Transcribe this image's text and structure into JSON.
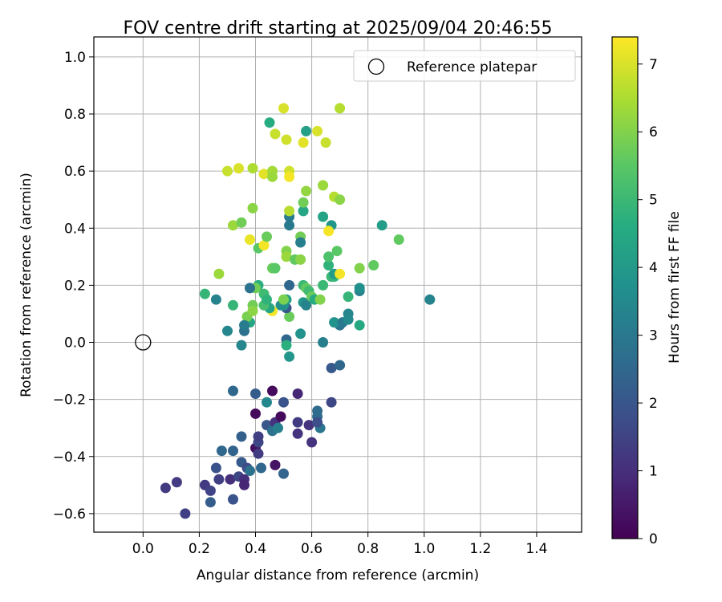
{
  "chart_data": {
    "type": "scatter",
    "title": "FOV centre drift starting at 2025/09/04 20:46:55",
    "xlabel": "Angular distance from reference (arcmin)",
    "ylabel": "Rotation from reference (arcmin)",
    "xlim": [
      -0.175,
      1.56
    ],
    "ylim": [
      -0.665,
      1.07
    ],
    "x_ticks": [
      0.0,
      0.2,
      0.4,
      0.6,
      0.8,
      1.0,
      1.2,
      1.4
    ],
    "y_ticks": [
      -0.6,
      -0.4,
      -0.2,
      0.0,
      0.2,
      0.4,
      0.6,
      0.8,
      1.0
    ],
    "x_tick_labels": [
      "0.0",
      "0.2",
      "0.4",
      "0.6",
      "0.8",
      "1.0",
      "1.2",
      "1.4"
    ],
    "y_tick_labels": [
      "−0.6",
      "−0.4",
      "−0.2",
      "0.0",
      "0.2",
      "0.4",
      "0.6",
      "0.8",
      "1.0"
    ],
    "grid": true,
    "legend": {
      "placement": "top-right",
      "entries": [
        "Reference platepar"
      ]
    },
    "reference_point": {
      "name": "Reference platepar",
      "x": 0.0,
      "y": 0.0
    },
    "colorbar": {
      "label": "Hours from first FF file",
      "colormap": "viridis",
      "range": [
        0,
        7.4
      ],
      "ticks": [
        0,
        1,
        2,
        3,
        4,
        5,
        6,
        7
      ],
      "tick_labels": [
        "0",
        "1",
        "2",
        "3",
        "4",
        "5",
        "6",
        "7"
      ]
    },
    "points": [
      [
        0.08,
        -0.51,
        1.3
      ],
      [
        0.12,
        -0.49,
        1.3
      ],
      [
        0.15,
        -0.6,
        1.4
      ],
      [
        0.22,
        -0.5,
        1.3
      ],
      [
        0.24,
        -0.52,
        1.5
      ],
      [
        0.24,
        -0.56,
        2.2
      ],
      [
        0.26,
        -0.44,
        1.9
      ],
      [
        0.27,
        -0.48,
        1.4
      ],
      [
        0.28,
        -0.38,
        2.5
      ],
      [
        0.31,
        -0.48,
        1.0
      ],
      [
        0.32,
        -0.55,
        1.9
      ],
      [
        0.32,
        -0.38,
        2.4
      ],
      [
        0.34,
        -0.47,
        1.6
      ],
      [
        0.35,
        -0.42,
        2.1
      ],
      [
        0.36,
        -0.48,
        1.0
      ],
      [
        0.36,
        -0.5,
        0.8
      ],
      [
        0.37,
        -0.44,
        1.7
      ],
      [
        0.38,
        -0.45,
        2.8
      ],
      [
        0.4,
        -0.37,
        0.3
      ],
      [
        0.41,
        -0.39,
        1.3
      ],
      [
        0.41,
        -0.35,
        1.6
      ],
      [
        0.41,
        -0.33,
        1.4
      ],
      [
        0.42,
        -0.44,
        2.5
      ],
      [
        0.44,
        -0.29,
        2.0
      ],
      [
        0.46,
        -0.31,
        2.8
      ],
      [
        0.47,
        -0.28,
        1.1
      ],
      [
        0.47,
        -0.43,
        0.4
      ],
      [
        0.48,
        -0.3,
        3.2
      ],
      [
        0.49,
        -0.26,
        0.2
      ],
      [
        0.5,
        -0.21,
        1.9
      ],
      [
        0.5,
        -0.46,
        2.4
      ],
      [
        0.4,
        -0.18,
        2.2
      ],
      [
        0.4,
        -0.25,
        0.2
      ],
      [
        0.46,
        -0.17,
        0.2
      ],
      [
        0.44,
        -0.21,
        3.5
      ],
      [
        0.32,
        -0.17,
        2.5
      ],
      [
        0.35,
        -0.33,
        2.3
      ],
      [
        0.55,
        -0.18,
        0.8
      ],
      [
        0.55,
        -0.28,
        1.3
      ],
      [
        0.55,
        -0.32,
        1.1
      ],
      [
        0.59,
        -0.29,
        1.1
      ],
      [
        0.6,
        -0.35,
        1.1
      ],
      [
        0.62,
        -0.24,
        2.6
      ],
      [
        0.62,
        -0.26,
        2.6
      ],
      [
        0.63,
        -0.3,
        2.9
      ],
      [
        0.67,
        -0.21,
        1.6
      ],
      [
        0.62,
        -0.28,
        1.8
      ],
      [
        0.67,
        -0.09,
        2.1
      ],
      [
        0.7,
        -0.08,
        2.5
      ],
      [
        0.64,
        0.0,
        3.2
      ],
      [
        0.7,
        0.06,
        2.9
      ],
      [
        0.68,
        0.07,
        3.8
      ],
      [
        0.56,
        0.03,
        3.8
      ],
      [
        0.51,
        0.01,
        2.5
      ],
      [
        0.51,
        -0.01,
        4.7
      ],
      [
        0.52,
        -0.05,
        3.9
      ],
      [
        0.52,
        0.09,
        5.7
      ],
      [
        0.51,
        0.12,
        2.0
      ],
      [
        0.51,
        0.15,
        4.2
      ],
      [
        0.52,
        0.2,
        2.5
      ],
      [
        0.5,
        0.13,
        3.9
      ],
      [
        0.49,
        0.13,
        3.7
      ],
      [
        0.46,
        0.11,
        7.3
      ],
      [
        0.45,
        0.12,
        4.4
      ],
      [
        0.43,
        0.13,
        5.2
      ],
      [
        0.43,
        0.17,
        5.1
      ],
      [
        0.41,
        0.2,
        4.7
      ],
      [
        0.4,
        0.19,
        5.8
      ],
      [
        0.39,
        0.13,
        5.8
      ],
      [
        0.38,
        0.07,
        4.4
      ],
      [
        0.37,
        0.09,
        5.9
      ],
      [
        0.36,
        0.04,
        2.8
      ],
      [
        0.36,
        0.06,
        3.1
      ],
      [
        0.35,
        -0.01,
        3.4
      ],
      [
        0.3,
        0.04,
        3.4
      ],
      [
        0.32,
        0.13,
        4.9
      ],
      [
        0.26,
        0.15,
        3.3
      ],
      [
        0.22,
        0.17,
        4.9
      ],
      [
        0.27,
        0.24,
        6.3
      ],
      [
        0.38,
        0.19,
        2.8
      ],
      [
        0.39,
        0.11,
        6.1
      ],
      [
        0.44,
        0.15,
        4.8
      ],
      [
        0.46,
        0.26,
        5.7
      ],
      [
        0.47,
        0.26,
        5.5
      ],
      [
        0.5,
        0.15,
        5.9
      ],
      [
        0.51,
        0.32,
        6.0
      ],
      [
        0.51,
        0.3,
        6.3
      ],
      [
        0.52,
        0.44,
        3.1
      ],
      [
        0.52,
        0.41,
        3.0
      ],
      [
        0.54,
        0.29,
        5.6
      ],
      [
        0.56,
        0.37,
        5.8
      ],
      [
        0.56,
        0.35,
        3.2
      ],
      [
        0.56,
        0.29,
        6.1
      ],
      [
        0.57,
        0.2,
        5.0
      ],
      [
        0.57,
        0.14,
        3.9
      ],
      [
        0.58,
        0.13,
        3.3
      ],
      [
        0.58,
        0.19,
        5.6
      ],
      [
        0.59,
        0.18,
        5.1
      ],
      [
        0.6,
        0.16,
        5.7
      ],
      [
        0.61,
        0.15,
        4.6
      ],
      [
        0.63,
        0.15,
        6.0
      ],
      [
        0.64,
        0.2,
        5.0
      ],
      [
        0.66,
        0.27,
        4.8
      ],
      [
        0.66,
        0.3,
        5.3
      ],
      [
        0.67,
        0.23,
        5.0
      ],
      [
        0.68,
        0.23,
        4.9
      ],
      [
        0.68,
        0.24,
        4.1
      ],
      [
        0.69,
        0.32,
        5.5
      ],
      [
        0.7,
        0.24,
        7.3
      ],
      [
        0.71,
        0.07,
        3.0
      ],
      [
        0.73,
        0.1,
        3.4
      ],
      [
        0.73,
        0.08,
        3.5
      ],
      [
        0.73,
        0.16,
        4.9
      ],
      [
        0.77,
        0.06,
        4.5
      ],
      [
        0.77,
        0.18,
        3.2
      ],
      [
        0.77,
        0.19,
        3.7
      ],
      [
        0.77,
        0.26,
        6.0
      ],
      [
        0.82,
        0.27,
        5.6
      ],
      [
        0.85,
        0.41,
        4.1
      ],
      [
        0.91,
        0.36,
        5.6
      ],
      [
        1.02,
        0.15,
        3.3
      ],
      [
        0.64,
        0.44,
        4.3
      ],
      [
        0.67,
        0.41,
        3.9
      ],
      [
        0.66,
        0.39,
        7.3
      ],
      [
        0.57,
        0.46,
        4.4
      ],
      [
        0.57,
        0.49,
        5.8
      ],
      [
        0.52,
        0.46,
        6.6
      ],
      [
        0.58,
        0.53,
        6.2
      ],
      [
        0.64,
        0.55,
        6.3
      ],
      [
        0.68,
        0.51,
        6.6
      ],
      [
        0.7,
        0.5,
        6.1
      ],
      [
        0.39,
        0.47,
        6.1
      ],
      [
        0.38,
        0.36,
        7.2
      ],
      [
        0.41,
        0.33,
        5.5
      ],
      [
        0.43,
        0.34,
        7.3
      ],
      [
        0.44,
        0.37,
        5.7
      ],
      [
        0.32,
        0.41,
        6.3
      ],
      [
        0.35,
        0.42,
        5.8
      ],
      [
        0.3,
        0.6,
        6.8
      ],
      [
        0.34,
        0.61,
        7.0
      ],
      [
        0.39,
        0.61,
        6.5
      ],
      [
        0.43,
        0.59,
        7.1
      ],
      [
        0.46,
        0.6,
        6.4
      ],
      [
        0.46,
        0.58,
        6.3
      ],
      [
        0.52,
        0.6,
        6.9
      ],
      [
        0.52,
        0.58,
        7.3
      ],
      [
        0.45,
        0.77,
        4.6
      ],
      [
        0.47,
        0.73,
        6.8
      ],
      [
        0.51,
        0.71,
        6.9
      ],
      [
        0.57,
        0.7,
        7.1
      ],
      [
        0.58,
        0.74,
        4.2
      ],
      [
        0.62,
        0.74,
        7.0
      ],
      [
        0.65,
        0.7,
        6.8
      ],
      [
        0.5,
        0.82,
        7.0
      ],
      [
        0.7,
        0.82,
        6.6
      ]
    ]
  }
}
